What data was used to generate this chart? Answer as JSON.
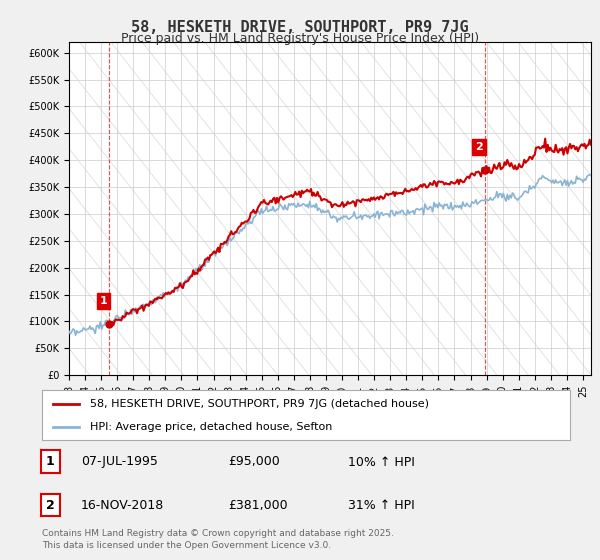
{
  "title": "58, HESKETH DRIVE, SOUTHPORT, PR9 7JG",
  "subtitle": "Price paid vs. HM Land Registry's House Price Index (HPI)",
  "legend_line1": "58, HESKETH DRIVE, SOUTHPORT, PR9 7JG (detached house)",
  "legend_line2": "HPI: Average price, detached house, Sefton",
  "annotation1_date": "07-JUL-1995",
  "annotation1_price": "£95,000",
  "annotation1_hpi": "10% ↑ HPI",
  "annotation2_date": "16-NOV-2018",
  "annotation2_price": "£381,000",
  "annotation2_hpi": "31% ↑ HPI",
  "footer": "Contains HM Land Registry data © Crown copyright and database right 2025.\nThis data is licensed under the Open Government Licence v3.0.",
  "ylim": [
    0,
    620000
  ],
  "sale1_year": 1995.52,
  "sale1_price": 95000,
  "sale2_year": 2018.88,
  "sale2_price": 381000,
  "bg_color": "#f0f0f0",
  "plot_bg_color": "#ffffff",
  "grid_color": "#cccccc",
  "hpi_line_color": "#8ab4d4",
  "price_line_color": "#cc0000",
  "sale_marker_color": "#cc0000",
  "annotation_box_color": "#dd0000",
  "vline_color": "#ff4444",
  "title_color": "#333333"
}
